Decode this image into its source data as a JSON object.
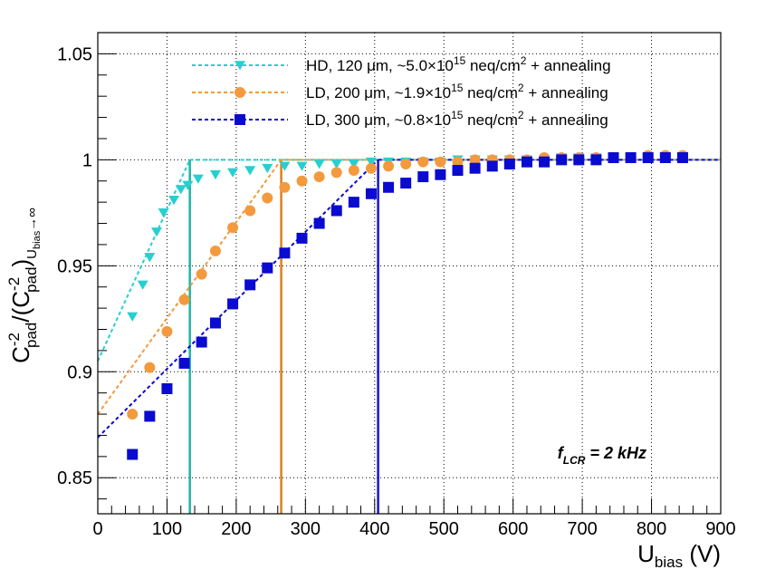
{
  "chart_data": {
    "type": "scatter",
    "title": "",
    "xlabel_main": "U",
    "xlabel_sub": "bias",
    "xlabel_unit": " (V)",
    "ylabel": {
      "c1": "C",
      "sup1": "-2",
      "sub1": "pad",
      "mid": "/(C",
      "sup2": "-2",
      "sub2": "pad",
      "close": ")",
      "sub3": "U",
      "sub4": "bias",
      "sub5": "→∞"
    },
    "xlim": [
      0,
      900
    ],
    "ylim": [
      0.833,
      1.06
    ],
    "x_ticks": [
      0,
      100,
      200,
      300,
      400,
      500,
      600,
      700,
      800,
      900
    ],
    "x_tick_labels": [
      "0",
      "100",
      "200",
      "300",
      "400",
      "500",
      "600",
      "700",
      "800",
      "900"
    ],
    "y_ticks": [
      0.85,
      0.9,
      0.95,
      1.0,
      1.05
    ],
    "y_tick_labels": [
      "0.85",
      "0.9",
      "0.95",
      "1",
      "1.05"
    ],
    "grid": true,
    "legend_position": "top-right",
    "annotation": {
      "main": "f",
      "sub": "LCR",
      "text": " = 2 kHz",
      "x": 800,
      "y": 0.86
    },
    "series": [
      {
        "name": "HD",
        "label_main": "HD, 120 μm, ~5.0×10",
        "label_sup": "15",
        "label_mid": " neq/cm",
        "label_sup2": "2",
        "label_end": " + annealing",
        "color": "#27cfcf",
        "vline_color": "#1fb3a6",
        "marker": "triangle-down",
        "fit_start": [
          0,
          0.905
        ],
        "knee": [
          133,
          1.0
        ],
        "fit_end": [
          900,
          1.0
        ],
        "depletion_voltage": 133,
        "x": [
          50,
          65,
          75,
          85,
          95,
          110,
          120,
          130,
          145,
          170,
          195,
          220,
          245,
          270,
          295,
          320,
          345,
          370,
          395,
          420,
          445,
          470,
          495,
          520,
          545,
          570,
          595,
          620,
          645,
          670,
          695,
          720,
          745,
          770,
          795,
          820,
          845
        ],
        "y": [
          0.926,
          0.941,
          0.954,
          0.966,
          0.975,
          0.981,
          0.986,
          0.988,
          0.991,
          0.993,
          0.994,
          0.995,
          0.996,
          0.997,
          0.997,
          0.998,
          0.998,
          0.998,
          0.999,
          0.999,
          0.999,
          0.999,
          0.999,
          1.0,
          1.0,
          1.0,
          1.0,
          1.0,
          1.0,
          1.001,
          1.001,
          1.001,
          1.001,
          1.001,
          1.001,
          1.001,
          1.001
        ]
      },
      {
        "name": "LD200",
        "label_main": "LD, 200 μm, ~1.9×10",
        "label_sup": "15",
        "label_mid": " neq/cm",
        "label_sup2": "2",
        "label_end": " + annealing",
        "color": "#f39a3e",
        "vline_color": "#d9821c",
        "marker": "circle",
        "fit_start": [
          0,
          0.88
        ],
        "knee": [
          265,
          1.0
        ],
        "fit_end": [
          900,
          1.0
        ],
        "depletion_voltage": 265,
        "x": [
          50,
          75,
          100,
          125,
          150,
          170,
          195,
          220,
          245,
          270,
          295,
          320,
          345,
          370,
          395,
          420,
          445,
          470,
          495,
          520,
          545,
          570,
          595,
          620,
          645,
          670,
          695,
          720,
          745,
          770,
          795,
          820,
          845
        ],
        "y": [
          0.88,
          0.902,
          0.919,
          0.934,
          0.946,
          0.957,
          0.968,
          0.976,
          0.982,
          0.987,
          0.99,
          0.992,
          0.994,
          0.995,
          0.996,
          0.997,
          0.998,
          0.999,
          0.999,
          0.999,
          1.0,
          1.0,
          1.0,
          1.0,
          1.001,
          1.001,
          1.001,
          1.001,
          1.001,
          1.001,
          1.002,
          1.002,
          1.002
        ]
      },
      {
        "name": "LD300",
        "label_main": "LD, 300 μm, ~0.8×10",
        "label_sup": "15",
        "label_mid": " neq/cm",
        "label_sup2": "2",
        "label_end": " + annealing",
        "color": "#0a0ad0",
        "vline_color": "#1414d2",
        "marker": "square",
        "fit_start": [
          0,
          0.869
        ],
        "knee": [
          405,
          1.0
        ],
        "fit_end": [
          900,
          1.0
        ],
        "depletion_voltage": 405,
        "x": [
          50,
          75,
          100,
          125,
          150,
          170,
          195,
          220,
          245,
          270,
          295,
          320,
          345,
          370,
          395,
          420,
          445,
          470,
          495,
          520,
          545,
          570,
          595,
          620,
          645,
          670,
          695,
          720,
          745,
          770,
          795,
          820,
          845
        ],
        "y": [
          0.861,
          0.879,
          0.892,
          0.904,
          0.914,
          0.923,
          0.932,
          0.941,
          0.949,
          0.956,
          0.963,
          0.97,
          0.976,
          0.98,
          0.984,
          0.987,
          0.989,
          0.992,
          0.993,
          0.995,
          0.996,
          0.997,
          0.998,
          0.999,
          0.999,
          1.0,
          1.0,
          1.0,
          1.001,
          1.001,
          1.001,
          1.001,
          1.001
        ]
      }
    ]
  }
}
